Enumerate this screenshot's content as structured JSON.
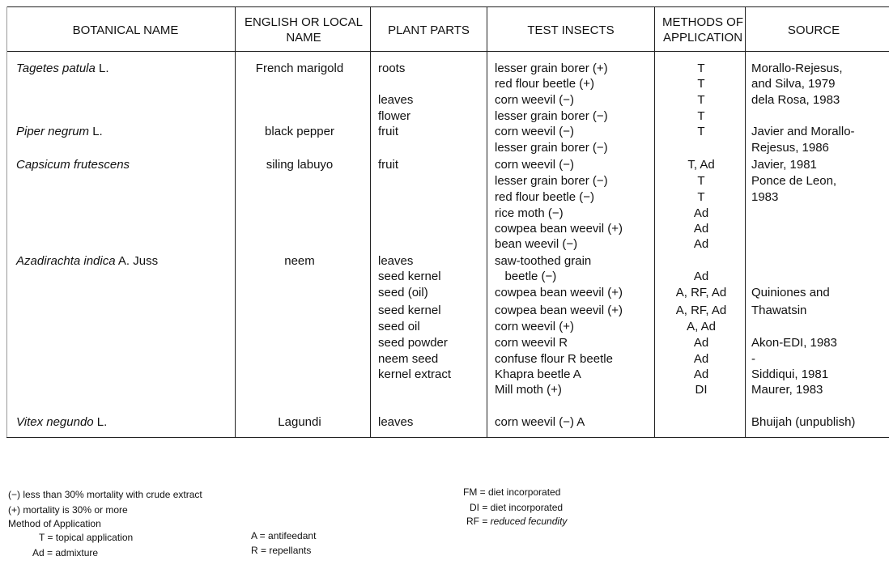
{
  "headers": [
    "BOTANICAL NAME",
    "ENGLISH OR LOCAL NAME",
    "PLANT PARTS",
    "TEST INSECTS",
    "METHODS OF APPLICATION",
    "SOURCE"
  ],
  "rows": [
    {
      "bot": "Tagetes patula",
      "auth": " L.",
      "eng": "French marigold",
      "part": "roots",
      "ins": "lesser grain borer (+)",
      "meth": "T",
      "src": "Morallo-Rejesus,"
    },
    {
      "bot": "",
      "auth": "",
      "eng": "",
      "part": "",
      "ins": "red flour beetle (+)",
      "meth": "T",
      "src": "and Silva, 1979"
    },
    {
      "bot": "",
      "auth": "",
      "eng": "",
      "part": "leaves",
      "ins": "corn weevil (−)",
      "meth": "T",
      "src": "dela Rosa, 1983"
    },
    {
      "bot": "",
      "auth": "",
      "eng": "",
      "part": "flower",
      "ins": "lesser grain borer (−)",
      "meth": "T",
      "src": ""
    },
    {
      "bot": "Piper negrum",
      "auth": " L.",
      "eng": "black pepper",
      "part": "fruit",
      "ins": "corn weevil (−)",
      "meth": "T",
      "src": "Javier and Morallo-"
    },
    {
      "bot": "",
      "auth": "",
      "eng": "",
      "part": "",
      "ins": "lesser grain borer (−)",
      "meth": "",
      "src": "Rejesus, 1986"
    },
    {
      "bot": "Capsicum frutescens",
      "auth": "",
      "eng": "siling labuyo",
      "part": "fruit",
      "ins": "corn weevil (−)",
      "meth": "T, Ad",
      "src": "Javier, 1981"
    },
    {
      "bot": "",
      "auth": "",
      "eng": "",
      "part": "",
      "ins": "lesser grain borer (−)",
      "meth": "T",
      "src": "Ponce de Leon,"
    },
    {
      "bot": "",
      "auth": "",
      "eng": "",
      "part": "",
      "ins": "red flour beetle (−)",
      "meth": "T",
      "src": "1983"
    },
    {
      "bot": "",
      "auth": "",
      "eng": "",
      "part": "",
      "ins": "rice moth (−)",
      "meth": "Ad",
      "src": ""
    },
    {
      "bot": "",
      "auth": "",
      "eng": "",
      "part": "",
      "ins": "cowpea bean weevil (+)",
      "meth": "Ad",
      "src": ""
    },
    {
      "bot": "",
      "auth": "",
      "eng": "",
      "part": "",
      "ins": "bean weevil (−)",
      "meth": "Ad",
      "src": ""
    },
    {
      "bot": "Azadirachta indica",
      "auth": " A. Juss",
      "eng": "neem",
      "part": "leaves",
      "ins": "saw-toothed grain",
      "meth": "",
      "src": ""
    },
    {
      "bot": "",
      "auth": "",
      "eng": "",
      "part": "seed kernel",
      "ins": "   beetle (−)",
      "meth": "Ad",
      "src": ""
    },
    {
      "bot": "",
      "auth": "",
      "eng": "",
      "part": "seed (oil)",
      "ins": "cowpea bean weevil (+)",
      "meth": "A, RF, Ad",
      "src": "Quiniones and"
    },
    {
      "bot": "",
      "auth": "",
      "eng": "",
      "part": "seed kernel",
      "ins": "cowpea bean weevil (+)",
      "meth": "A, RF, Ad",
      "src": "Thawatsin"
    },
    {
      "bot": "",
      "auth": "",
      "eng": "",
      "part": "seed oil",
      "ins": "corn weevil (+)",
      "meth": "A, Ad",
      "src": ""
    },
    {
      "bot": "",
      "auth": "",
      "eng": "",
      "part": "seed powder",
      "ins": "corn weevil R",
      "meth": "Ad",
      "src": "Akon-EDI, 1983"
    },
    {
      "bot": "",
      "auth": "",
      "eng": "",
      "part": "neem seed",
      "ins": "confuse flour R beetle",
      "meth": "Ad",
      "src": "-"
    },
    {
      "bot": "",
      "auth": "",
      "eng": "",
      "part": "kernel extract",
      "ins": "Khapra beetle A",
      "meth": "Ad",
      "src": "Siddiqui, 1981"
    },
    {
      "bot": "",
      "auth": "",
      "eng": "",
      "part": "",
      "ins": "Mill moth (+)",
      "meth": "DI",
      "src": "Maurer, 1983"
    },
    {
      "bot": "Vitex negundo",
      "auth": " L.",
      "eng": "Lagundi",
      "part": "leaves",
      "ins": "corn weevil (−) A",
      "meth": "",
      "src": "Bhuijah (unpublish)"
    }
  ],
  "footnotes": {
    "minus": "(−) less than 30% mortality with crude extract",
    "plus": "(+) mortality is 30% or more",
    "method_title": "Method of Application",
    "T": "T  =  topical application",
    "Ad": "Ad  =  admixture",
    "A": "A  =  antifeedant",
    "R": "R  =  repellants",
    "FM": "FM  =  diet incorporated",
    "DI": "DI  =  diet incorporated",
    "RF_key": "RF  =  ",
    "RF_val": "reduced fecundity"
  }
}
